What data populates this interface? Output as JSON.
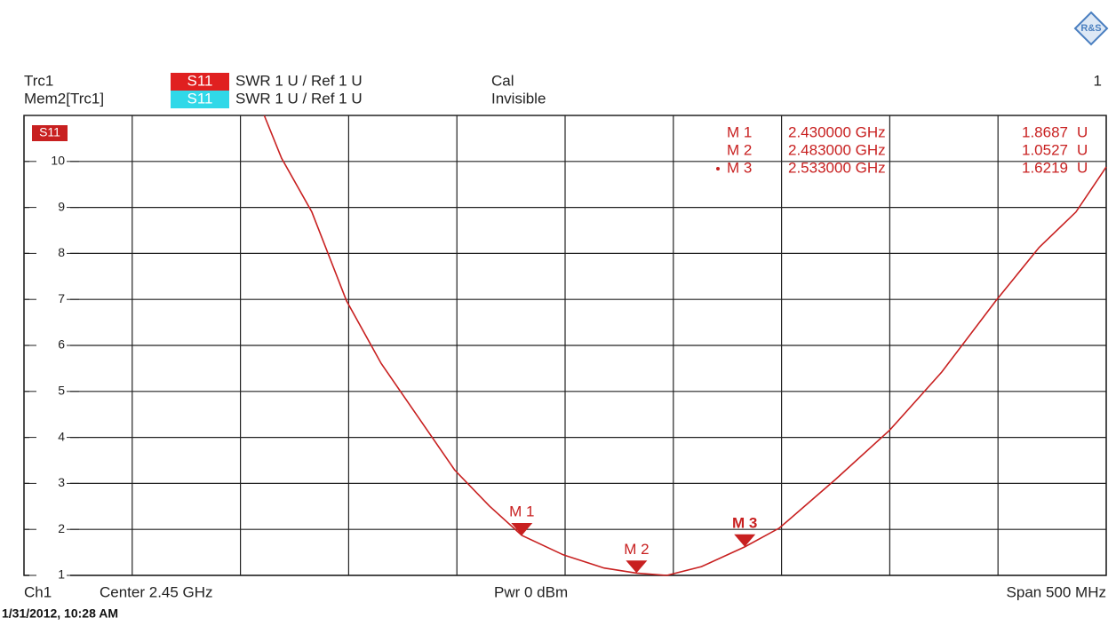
{
  "header": {
    "row1": {
      "trace": "Trc1",
      "param": "S11",
      "format": "SWR 1 U / Ref 1 U",
      "state": "Cal",
      "channel": "1"
    },
    "row2": {
      "trace": "Mem2[Trc1]",
      "param": "S11",
      "format": "SWR 1 U / Ref 1 U",
      "state": "Invisible"
    }
  },
  "footer": {
    "channel": "Ch1",
    "center": "Center 2.45 GHz",
    "power": "Pwr 0 dBm",
    "span": "Span 500 MHz",
    "timestamp": "1/31/2012, 10:28 AM"
  },
  "chart_data": {
    "type": "line",
    "xlim": [
      2.2,
      2.7
    ],
    "xticks": [
      2.2,
      2.25,
      2.3,
      2.35,
      2.4,
      2.45,
      2.5,
      2.55,
      2.6,
      2.65,
      2.7
    ],
    "ylim": [
      1,
      11
    ],
    "yticks": [
      1,
      2,
      3,
      4,
      5,
      6,
      7,
      8,
      9,
      10
    ],
    "grid": true,
    "series": [
      {
        "name": "S11",
        "color": "#c82020",
        "x": [
          2.311,
          2.319,
          2.333,
          2.349,
          2.365,
          2.382,
          2.399,
          2.415,
          2.43,
          2.449,
          2.468,
          2.483,
          2.497,
          2.513,
          2.533,
          2.549,
          2.575,
          2.6,
          2.624,
          2.649,
          2.669,
          2.686,
          2.7
        ],
        "values": [
          11,
          10.07,
          8.9,
          6.97,
          5.61,
          4.45,
          3.29,
          2.51,
          1.87,
          1.45,
          1.16,
          1.05,
          1.0,
          1.19,
          1.62,
          2.03,
          3.09,
          4.16,
          5.42,
          6.97,
          8.13,
          8.9,
          9.88
        ]
      }
    ],
    "markers": [
      {
        "name": "M 1",
        "x": 2.43,
        "x_label": "2.430000 GHz",
        "value": 1.8687,
        "unit": "U"
      },
      {
        "name": "M 2",
        "x": 2.483,
        "x_label": "2.483000 GHz",
        "value": 1.0527,
        "unit": "U"
      },
      {
        "name": "M 3",
        "x": 2.533,
        "x_label": "2.533000 GHz",
        "value": 1.6219,
        "unit": "U"
      }
    ]
  }
}
